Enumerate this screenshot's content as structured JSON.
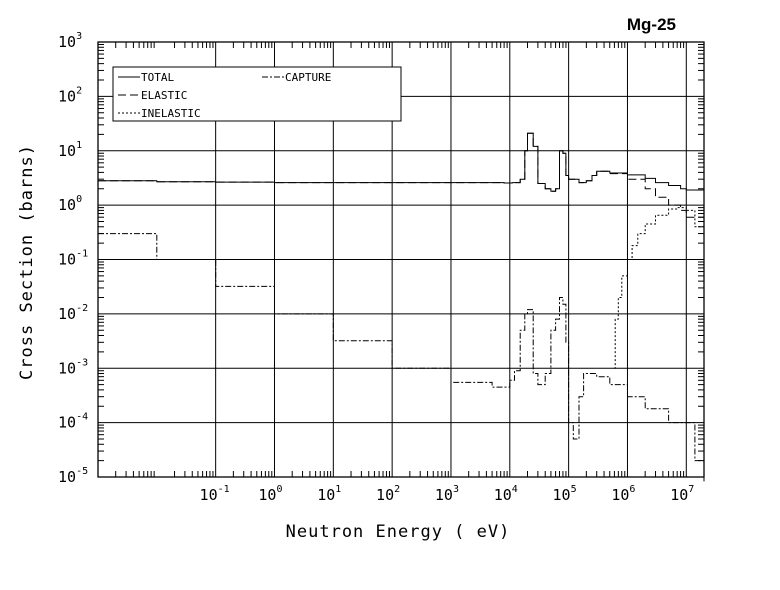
{
  "chart_data": {
    "type": "line",
    "title": "Mg-25",
    "xlabel": "Neutron Energy ( eV)",
    "ylabel": "Cross Section (barns)",
    "x_scale": "log",
    "y_scale": "log",
    "xlim": [
      0.001,
      20000000
    ],
    "ylim": [
      1e-05,
      1000
    ],
    "grid": true,
    "legend_position": "top-left",
    "x_ticks": [
      {
        "base": "10",
        "exp": "-1",
        "value": 0.1
      },
      {
        "base": "10",
        "exp": "0",
        "value": 1
      },
      {
        "base": "10",
        "exp": "1",
        "value": 10
      },
      {
        "base": "10",
        "exp": "2",
        "value": 100
      },
      {
        "base": "10",
        "exp": "3",
        "value": 1000
      },
      {
        "base": "10",
        "exp": "4",
        "value": 10000
      },
      {
        "base": "10",
        "exp": "5",
        "value": 100000
      },
      {
        "base": "10",
        "exp": "6",
        "value": 1000000
      },
      {
        "base": "10",
        "exp": "7",
        "value": 10000000
      }
    ],
    "y_ticks": [
      {
        "base": "10",
        "exp": "-5",
        "value": 1e-05
      },
      {
        "base": "10",
        "exp": "-4",
        "value": 0.0001
      },
      {
        "base": "10",
        "exp": "-3",
        "value": 0.001
      },
      {
        "base": "10",
        "exp": "-2",
        "value": 0.01
      },
      {
        "base": "10",
        "exp": "-1",
        "value": 0.1
      },
      {
        "base": "10",
        "exp": "0",
        "value": 1
      },
      {
        "base": "10",
        "exp": "1",
        "value": 10
      },
      {
        "base": "10",
        "exp": "2",
        "value": 100
      },
      {
        "base": "10",
        "exp": "3",
        "value": 1000
      }
    ],
    "series": [
      {
        "name": "TOTAL",
        "dash": "",
        "x": [
          0.001,
          0.01,
          0.1,
          1,
          10,
          100,
          1000,
          8000,
          11000,
          15000,
          18000,
          20000,
          25000,
          30000,
          40000,
          50000,
          60000,
          70000,
          80000,
          90000,
          100000,
          150000,
          200000,
          250000,
          300000,
          500000,
          1000000,
          2000000,
          3000000,
          5000000,
          8000000,
          10000000,
          20000000
        ],
        "y": [
          2.8,
          2.7,
          2.65,
          2.6,
          2.6,
          2.6,
          2.6,
          2.55,
          2.6,
          3.0,
          10.0,
          21.0,
          12.0,
          2.5,
          2.0,
          1.8,
          2.0,
          10.0,
          9.0,
          3.5,
          3.0,
          2.6,
          2.8,
          3.5,
          4.2,
          3.9,
          3.6,
          3.1,
          2.6,
          2.3,
          2.0,
          1.9,
          2.0
        ]
      },
      {
        "name": "ELASTIC",
        "dash": "8,4",
        "x": [
          0.001,
          0.01,
          0.1,
          1,
          10,
          100,
          1000,
          8000,
          11000,
          15000,
          18000,
          20000,
          25000,
          30000,
          40000,
          50000,
          60000,
          70000,
          80000,
          90000,
          100000,
          150000,
          200000,
          250000,
          300000,
          500000,
          1000000,
          2000000,
          3000000,
          5000000,
          8000000,
          10000000,
          20000000
        ],
        "y": [
          2.8,
          2.7,
          2.65,
          2.6,
          2.6,
          2.6,
          2.6,
          2.55,
          2.6,
          3.0,
          10.0,
          21.0,
          12.0,
          2.5,
          2.0,
          1.8,
          2.0,
          10.0,
          9.0,
          3.5,
          3.0,
          2.6,
          2.8,
          3.5,
          4.2,
          3.8,
          3.0,
          2.0,
          1.4,
          1.0,
          0.8,
          0.6,
          0.12
        ]
      },
      {
        "name": "INELASTIC",
        "dash": "2,2",
        "x": [
          600000,
          620000,
          700000,
          800000,
          1000000,
          1200000,
          1500000,
          2000000,
          3000000,
          5000000,
          7000000,
          10000000,
          14000000,
          20000000
        ],
        "y": [
          0.001,
          0.008,
          0.02,
          0.05,
          0.1,
          0.18,
          0.3,
          0.45,
          0.65,
          0.85,
          0.9,
          0.8,
          0.4,
          0.13
        ]
      },
      {
        "name": "CAPTURE",
        "dash": "6,2,2,2",
        "x": [
          0.001,
          0.01,
          0.1,
          1,
          10,
          100,
          1000,
          5000,
          10000,
          12000,
          15000,
          18000,
          20000,
          25000,
          30000,
          40000,
          50000,
          60000,
          70000,
          80000,
          90000,
          100000,
          120000,
          150000,
          180000,
          200000,
          300000,
          500000,
          1000000,
          2000000,
          5000000,
          10000000,
          14000000,
          20000000
        ],
        "y": [
          0.3,
          0.1,
          0.032,
          0.01,
          0.0032,
          0.001,
          0.00055,
          0.00045,
          0.0006,
          0.0009,
          0.005,
          0.01,
          0.012,
          0.0008,
          0.0005,
          0.0008,
          0.005,
          0.008,
          0.02,
          0.015,
          0.003,
          0.0001,
          5e-05,
          0.0003,
          0.0008,
          0.0008,
          0.0007,
          0.0005,
          0.0003,
          0.00018,
          0.0001,
          0.0001,
          2e-05,
          8e-06
        ]
      }
    ]
  }
}
